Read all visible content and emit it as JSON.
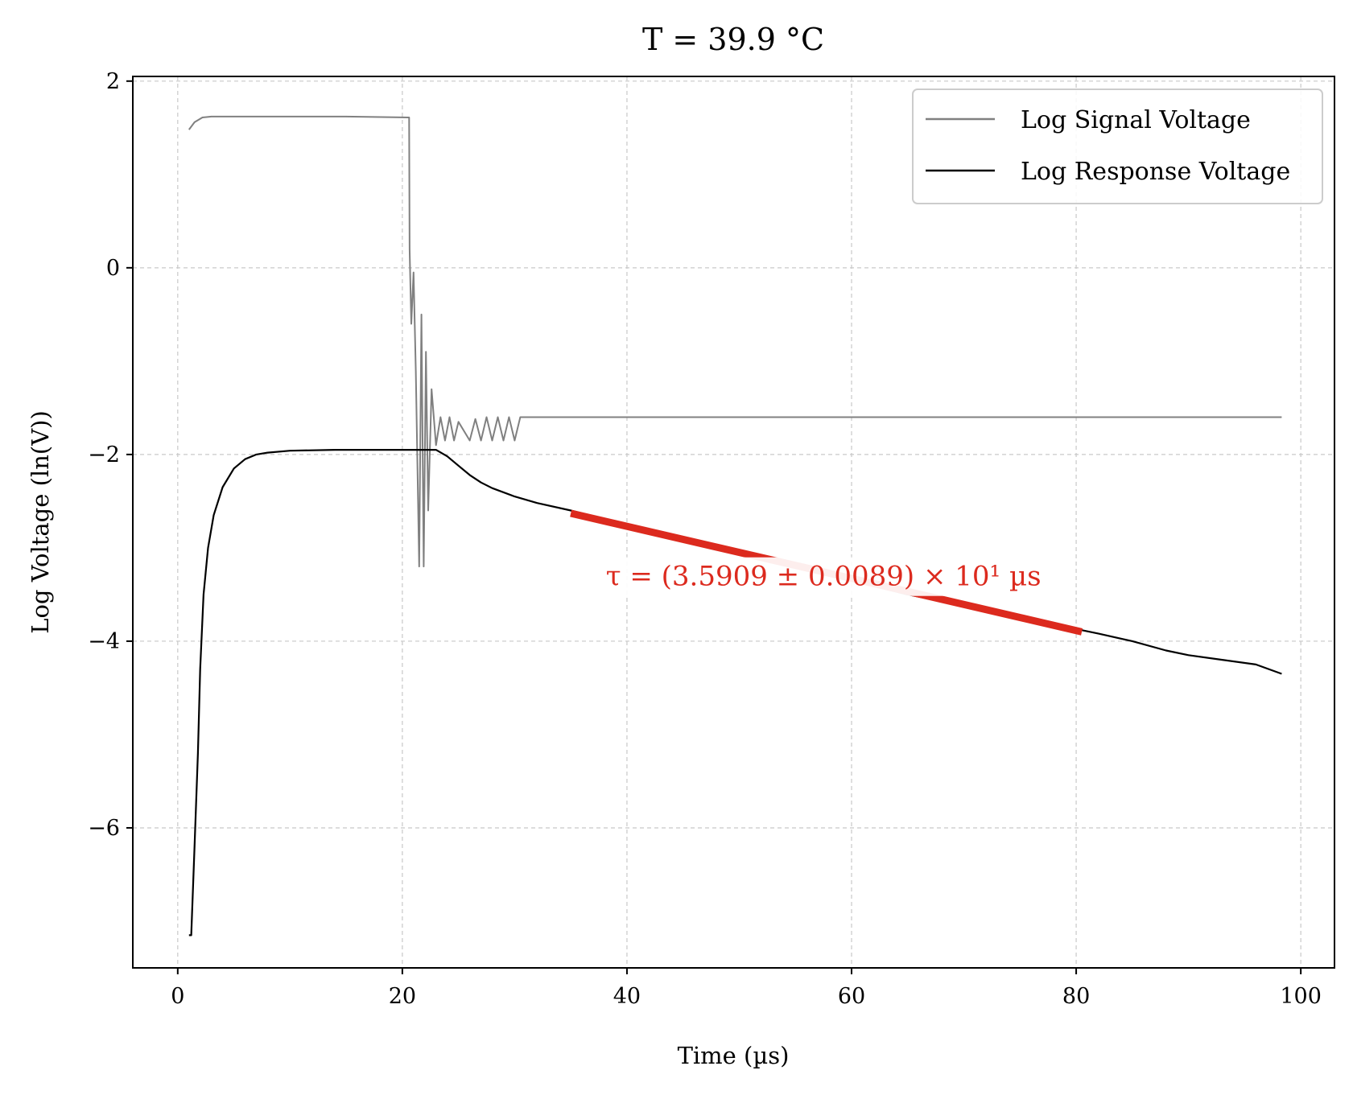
{
  "chart_data": {
    "type": "line",
    "title": "T = 39.9 °C",
    "xlabel": "Time (µs)",
    "ylabel": "Log Voltage (ln(V))",
    "xlim": [
      -4,
      103
    ],
    "ylim": [
      -7.5,
      2.05
    ],
    "xticks": [
      0,
      20,
      40,
      60,
      80,
      100
    ],
    "xtick_labels": [
      "0",
      "20",
      "40",
      "60",
      "80",
      "100"
    ],
    "yticks": [
      -6,
      -4,
      -2,
      0,
      2
    ],
    "ytick_labels": [
      "−6",
      "−4",
      "−2",
      "0",
      "2"
    ],
    "grid": true,
    "legend_position": "top-right",
    "series": [
      {
        "name": "Log Signal Voltage",
        "color": "#808080",
        "x": [
          1.0,
          1.5,
          2.2,
          3.0,
          10.0,
          15.0,
          20.6,
          20.65,
          20.8,
          21.0,
          21.2,
          21.5,
          21.7,
          21.9,
          22.1,
          22.3,
          22.6,
          23.0,
          23.4,
          23.8,
          24.2,
          24.6,
          25.0,
          26.0,
          26.5,
          27.0,
          27.5,
          28.0,
          28.5,
          29.0,
          29.5,
          30.0,
          30.5,
          31.0,
          40.0,
          60.0,
          80.0,
          98.3
        ],
        "y": [
          1.48,
          1.56,
          1.61,
          1.62,
          1.62,
          1.62,
          1.61,
          0.2,
          -0.6,
          -0.05,
          -1.1,
          -3.2,
          -0.5,
          -3.2,
          -0.9,
          -2.6,
          -1.3,
          -1.9,
          -1.6,
          -1.85,
          -1.6,
          -1.85,
          -1.65,
          -1.85,
          -1.62,
          -1.85,
          -1.6,
          -1.85,
          -1.6,
          -1.85,
          -1.6,
          -1.85,
          -1.6,
          -1.6,
          -1.6,
          -1.6,
          -1.6,
          -1.6
        ]
      },
      {
        "name": "Log Response Voltage",
        "color": "#000000",
        "x": [
          1.0,
          1.2,
          1.5,
          1.8,
          2.0,
          2.3,
          2.7,
          3.2,
          4.0,
          5.0,
          6.0,
          7.0,
          8.0,
          10.0,
          14.0,
          18.0,
          22.0,
          23.0,
          24.0,
          25.0,
          26.0,
          27.0,
          28.0,
          30.0,
          32.0,
          35.0,
          40.0,
          45.0,
          50.0,
          55.0,
          60.0,
          65.0,
          70.0,
          75.0,
          80.0,
          82.0,
          85.0,
          88.0,
          90.0,
          93.0,
          96.0,
          98.3
        ],
        "y": [
          -7.15,
          -7.15,
          -6.2,
          -5.2,
          -4.3,
          -3.5,
          -3.0,
          -2.65,
          -2.35,
          -2.15,
          -2.05,
          -2.0,
          -1.98,
          -1.96,
          -1.95,
          -1.95,
          -1.95,
          -1.95,
          -2.02,
          -2.12,
          -2.22,
          -2.3,
          -2.36,
          -2.45,
          -2.52,
          -2.6,
          -2.75,
          -2.9,
          -3.05,
          -3.2,
          -3.35,
          -3.5,
          -3.62,
          -3.75,
          -3.87,
          -3.92,
          -4.0,
          -4.1,
          -4.15,
          -4.2,
          -4.25,
          -4.35
        ]
      }
    ],
    "fit": {
      "color": "#dc2a1e",
      "x": [
        35.0,
        80.5
      ],
      "y": [
        -2.63,
        -3.9
      ]
    },
    "annotation": {
      "text": "τ = (3.5909 ± 0.0089) × 10¹ µs",
      "x": 57.5,
      "y": -3.3
    }
  }
}
